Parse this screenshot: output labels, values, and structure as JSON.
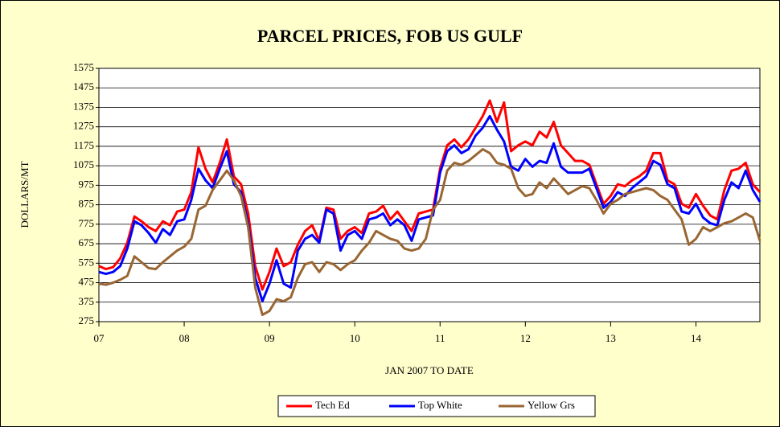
{
  "chart_data": {
    "type": "line",
    "title": "PARCEL PRICES, FOB US GULF",
    "y_label": "DOLLARS/MT",
    "x_label": "JAN 2007 TO DATE",
    "xlim": [
      2007,
      2014.75
    ],
    "xticks": [
      {
        "value": 2007,
        "label": "07"
      },
      {
        "value": 2008,
        "label": "08"
      },
      {
        "value": 2009,
        "label": "09"
      },
      {
        "value": 2010,
        "label": "10"
      },
      {
        "value": 2011,
        "label": "11"
      },
      {
        "value": 2012,
        "label": "12"
      },
      {
        "value": 2013,
        "label": "13"
      },
      {
        "value": 2014,
        "label": "14"
      }
    ],
    "ylim": [
      275,
      1575
    ],
    "yticks": [
      275,
      375,
      475,
      575,
      675,
      775,
      875,
      975,
      1075,
      1175,
      1275,
      1375,
      1475,
      1575
    ],
    "grid": true,
    "legend": "bottom",
    "x": [
      2007,
      2007.083,
      2007.167,
      2007.25,
      2007.333,
      2007.417,
      2007.5,
      2007.583,
      2007.667,
      2007.75,
      2007.833,
      2007.917,
      2008,
      2008.083,
      2008.167,
      2008.25,
      2008.333,
      2008.417,
      2008.5,
      2008.583,
      2008.667,
      2008.75,
      2008.833,
      2008.917,
      2009,
      2009.083,
      2009.167,
      2009.25,
      2009.333,
      2009.417,
      2009.5,
      2009.583,
      2009.667,
      2009.75,
      2009.833,
      2009.917,
      2010,
      2010.083,
      2010.167,
      2010.25,
      2010.333,
      2010.417,
      2010.5,
      2010.583,
      2010.667,
      2010.75,
      2010.833,
      2010.917,
      2011,
      2011.083,
      2011.167,
      2011.25,
      2011.333,
      2011.417,
      2011.5,
      2011.583,
      2011.667,
      2011.75,
      2011.833,
      2011.917,
      2012,
      2012.083,
      2012.167,
      2012.25,
      2012.333,
      2012.417,
      2012.5,
      2012.583,
      2012.667,
      2012.75,
      2012.833,
      2012.917,
      2013,
      2013.083,
      2013.167,
      2013.25,
      2013.333,
      2013.417,
      2013.5,
      2013.583,
      2013.667,
      2013.75,
      2013.833,
      2013.917,
      2014,
      2014.083,
      2014.167,
      2014.25,
      2014.333,
      2014.417,
      2014.5,
      2014.583,
      2014.667,
      2014.75
    ],
    "series": [
      {
        "name": "Tech Ed",
        "color": "#ff0000",
        "values": [
          560,
          545,
          555,
          600,
          680,
          815,
          790,
          760,
          740,
          790,
          770,
          840,
          850,
          940,
          1170,
          1060,
          990,
          1090,
          1210,
          1020,
          980,
          830,
          560,
          440,
          530,
          650,
          560,
          580,
          670,
          740,
          770,
          690,
          860,
          850,
          700,
          740,
          760,
          730,
          830,
          840,
          870,
          800,
          840,
          790,
          740,
          830,
          840,
          850,
          1060,
          1180,
          1210,
          1170,
          1210,
          1270,
          1330,
          1410,
          1300,
          1400,
          1150,
          1180,
          1200,
          1180,
          1250,
          1220,
          1300,
          1180,
          1140,
          1100,
          1100,
          1080,
          980,
          880,
          920,
          980,
          970,
          1000,
          1020,
          1050,
          1140,
          1140,
          1000,
          980,
          880,
          860,
          930,
          870,
          820,
          800,
          950,
          1050,
          1060,
          1090,
          980,
          940
        ]
      },
      {
        "name": "Top White",
        "color": "#0000ff",
        "values": [
          530,
          520,
          530,
          560,
          650,
          790,
          770,
          730,
          680,
          750,
          720,
          790,
          800,
          900,
          1060,
          1000,
          960,
          1060,
          1150,
          980,
          940,
          780,
          500,
          380,
          470,
          590,
          470,
          450,
          640,
          700,
          720,
          680,
          850,
          830,
          640,
          720,
          740,
          700,
          800,
          810,
          830,
          770,
          800,
          770,
          690,
          800,
          810,
          820,
          1040,
          1150,
          1180,
          1140,
          1160,
          1230,
          1270,
          1330,
          1260,
          1200,
          1070,
          1050,
          1110,
          1070,
          1100,
          1090,
          1190,
          1070,
          1040,
          1040,
          1040,
          1060,
          960,
          860,
          890,
          940,
          920,
          960,
          990,
          1020,
          1100,
          1080,
          980,
          960,
          840,
          830,
          880,
          810,
          780,
          770,
          900,
          990,
          960,
          1050,
          950,
          890
        ]
      },
      {
        "name": "Yellow Grs",
        "color": "#996633",
        "values": [
          470,
          465,
          475,
          490,
          510,
          610,
          580,
          550,
          545,
          580,
          610,
          640,
          660,
          700,
          850,
          870,
          950,
          1000,
          1050,
          1000,
          920,
          760,
          450,
          310,
          330,
          390,
          380,
          400,
          500,
          570,
          580,
          530,
          580,
          570,
          540,
          570,
          590,
          640,
          680,
          740,
          720,
          700,
          690,
          650,
          640,
          650,
          700,
          850,
          900,
          1050,
          1090,
          1080,
          1100,
          1130,
          1160,
          1140,
          1090,
          1080,
          1060,
          960,
          920,
          930,
          990,
          960,
          1010,
          970,
          930,
          950,
          970,
          960,
          900,
          830,
          880,
          900,
          930,
          940,
          950,
          960,
          950,
          920,
          900,
          850,
          800,
          670,
          700,
          760,
          740,
          760,
          780,
          790,
          810,
          830,
          810,
          690
        ]
      }
    ]
  }
}
